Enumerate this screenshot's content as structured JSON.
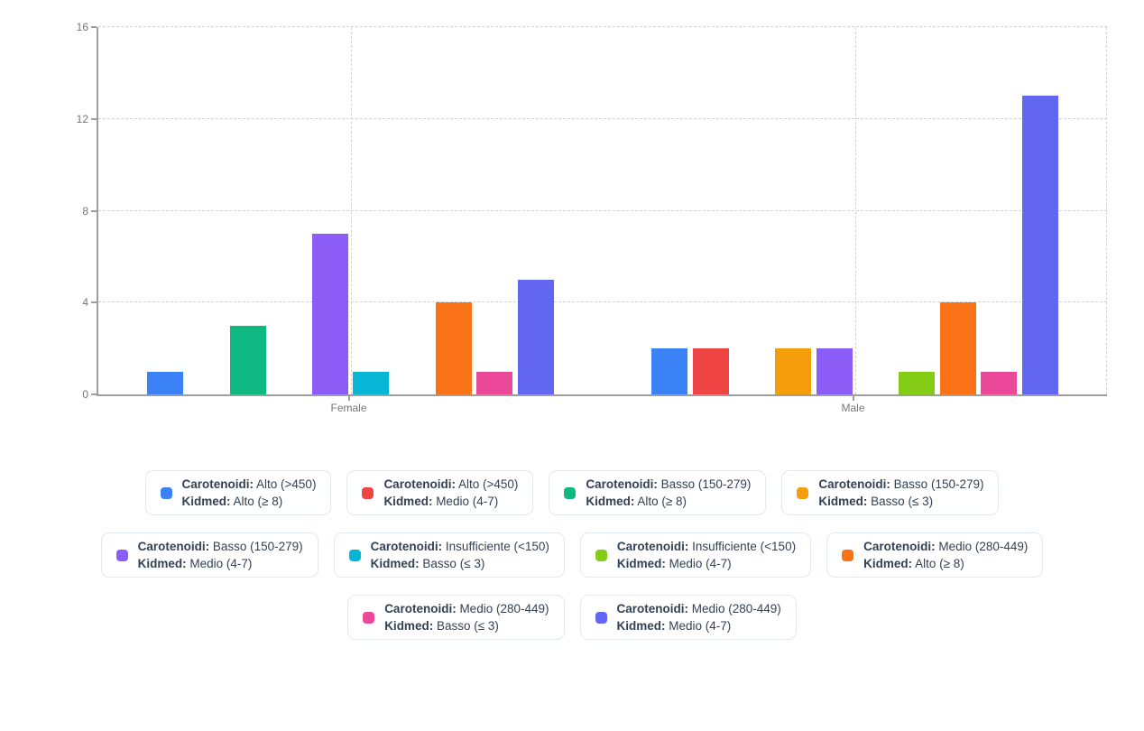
{
  "chart_data": {
    "type": "bar",
    "categories": [
      "Female",
      "Male"
    ],
    "xlabel": "",
    "ylabel": "",
    "ylim": [
      0,
      16
    ],
    "yticks": [
      0,
      4,
      8,
      12,
      16
    ],
    "grid": true,
    "legend_position": "bottom",
    "series": [
      {
        "carotenoidi": "Alto (>450)",
        "kidmed": "Alto (≥ 8)",
        "color": "#3b82f6",
        "values": [
          1,
          2
        ]
      },
      {
        "carotenoidi": "Alto (>450)",
        "kidmed": "Medio (4-7)",
        "color": "#ef4444",
        "values": [
          0,
          2
        ]
      },
      {
        "carotenoidi": "Basso (150-279)",
        "kidmed": "Alto (≥ 8)",
        "color": "#10b981",
        "values": [
          3,
          0
        ]
      },
      {
        "carotenoidi": "Basso (150-279)",
        "kidmed": "Basso (≤ 3)",
        "color": "#f59e0b",
        "values": [
          0,
          2
        ]
      },
      {
        "carotenoidi": "Basso (150-279)",
        "kidmed": "Medio (4-7)",
        "color": "#8b5cf6",
        "values": [
          7,
          2
        ]
      },
      {
        "carotenoidi": "Insufficiente (<150)",
        "kidmed": "Basso (≤ 3)",
        "color": "#06b6d4",
        "values": [
          1,
          0
        ]
      },
      {
        "carotenoidi": "Insufficiente (<150)",
        "kidmed": "Medio (4-7)",
        "color": "#84cc16",
        "values": [
          0,
          1
        ]
      },
      {
        "carotenoidi": "Medio (280-449)",
        "kidmed": "Alto (≥ 8)",
        "color": "#f97316",
        "values": [
          4,
          4
        ]
      },
      {
        "carotenoidi": "Medio (280-449)",
        "kidmed": "Basso (≤ 3)",
        "color": "#ec4899",
        "values": [
          1,
          1
        ]
      },
      {
        "carotenoidi": "Medio (280-449)",
        "kidmed": "Medio (4-7)",
        "color": "#6366f1",
        "values": [
          5,
          13
        ]
      }
    ]
  },
  "legend": {
    "field1_label": "Carotenoidi:",
    "field2_label": "Kidmed:",
    "rows": [
      4,
      4,
      2
    ]
  },
  "colors": {
    "axis_line": "#9e9e9e",
    "gridline": "#d2d2d2",
    "tick_text": "#757575",
    "legend_text": "#334155",
    "legend_border": "#e2e8f0"
  }
}
